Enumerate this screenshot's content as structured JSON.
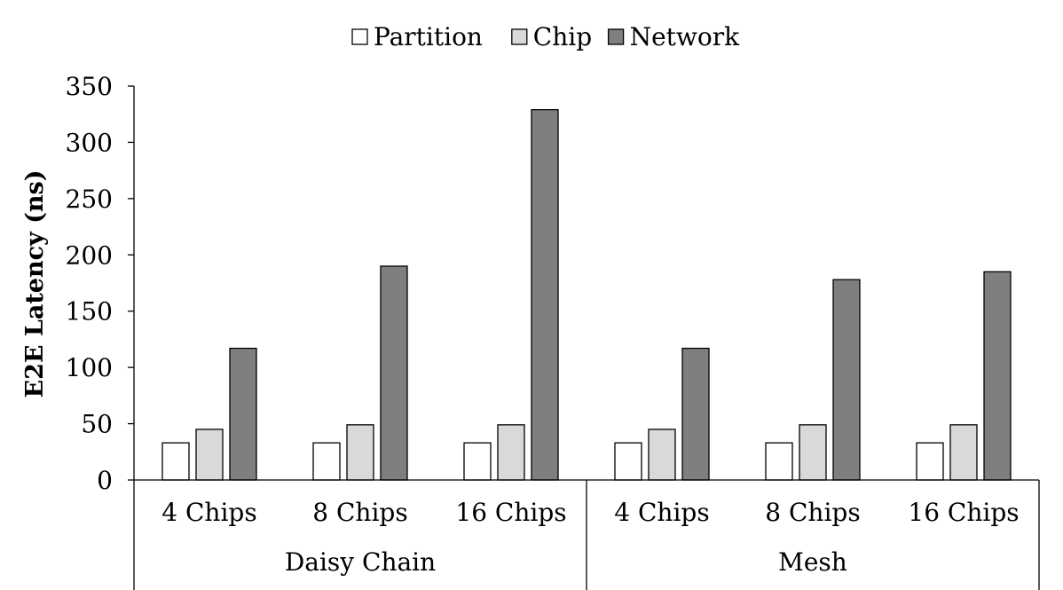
{
  "chart_data": {
    "type": "bar",
    "title": "",
    "xlabel": "",
    "ylabel": "E2E Latency (ns)",
    "ylim": [
      0,
      350
    ],
    "yticks": [
      0,
      50,
      100,
      150,
      200,
      250,
      300,
      350
    ],
    "grid": false,
    "legend_position": "top",
    "groups": [
      {
        "label": "Daisy Chain",
        "categories": [
          "4 Chips",
          "8 Chips",
          "16 Chips"
        ]
      },
      {
        "label": "Mesh",
        "categories": [
          "4 Chips",
          "8 Chips",
          "16 Chips"
        ]
      }
    ],
    "categories": [
      "4 Chips",
      "8 Chips",
      "16 Chips",
      "4 Chips",
      "8 Chips",
      "16 Chips"
    ],
    "series": [
      {
        "name": "Partition",
        "color": "#ffffff",
        "values": [
          33,
          33,
          33,
          33,
          33,
          33
        ]
      },
      {
        "name": "Chip",
        "color": "#d9d9d9",
        "values": [
          45,
          49,
          49,
          45,
          49,
          49
        ]
      },
      {
        "name": "Network",
        "color": "#7f7f7f",
        "values": [
          117,
          190,
          329,
          117,
          178,
          185
        ]
      }
    ]
  }
}
